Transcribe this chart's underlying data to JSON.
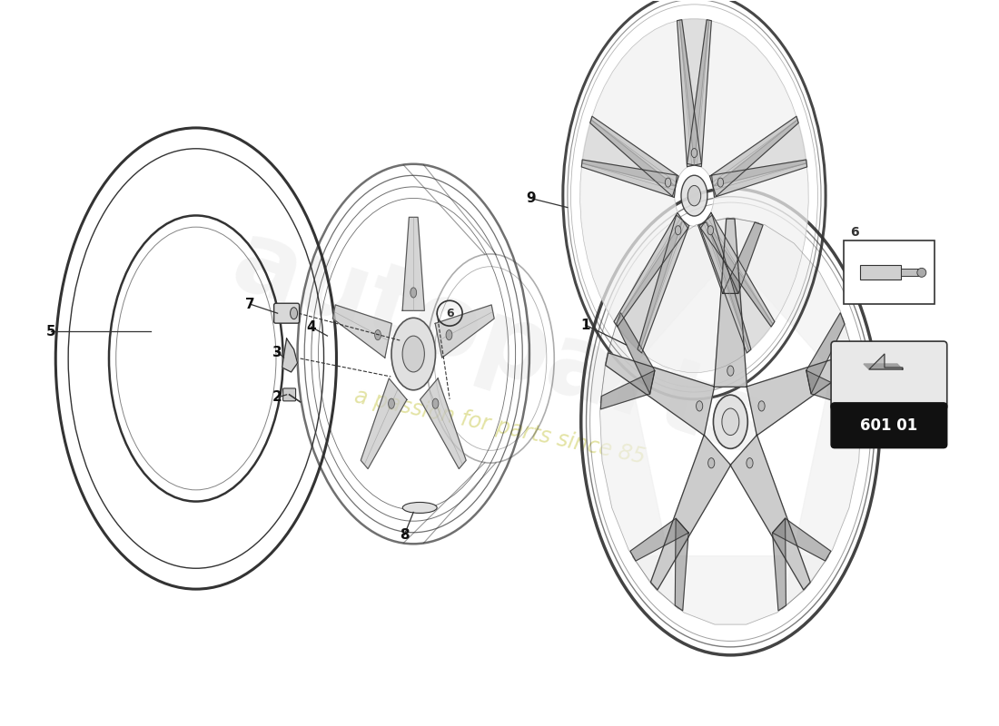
{
  "bg_color": "#ffffff",
  "watermark_text": "a passion for parts since 85",
  "watermark_color": "#c8c84a",
  "watermark_alpha": 0.5,
  "line_color": "#333333",
  "rim_color": "#555555",
  "spoke_fill": "#c8c8c8",
  "spoke_dark": "#888888",
  "hub_fill": "#e0e0e0",
  "badge_text": "601 01",
  "part_label_fontsize": 11
}
